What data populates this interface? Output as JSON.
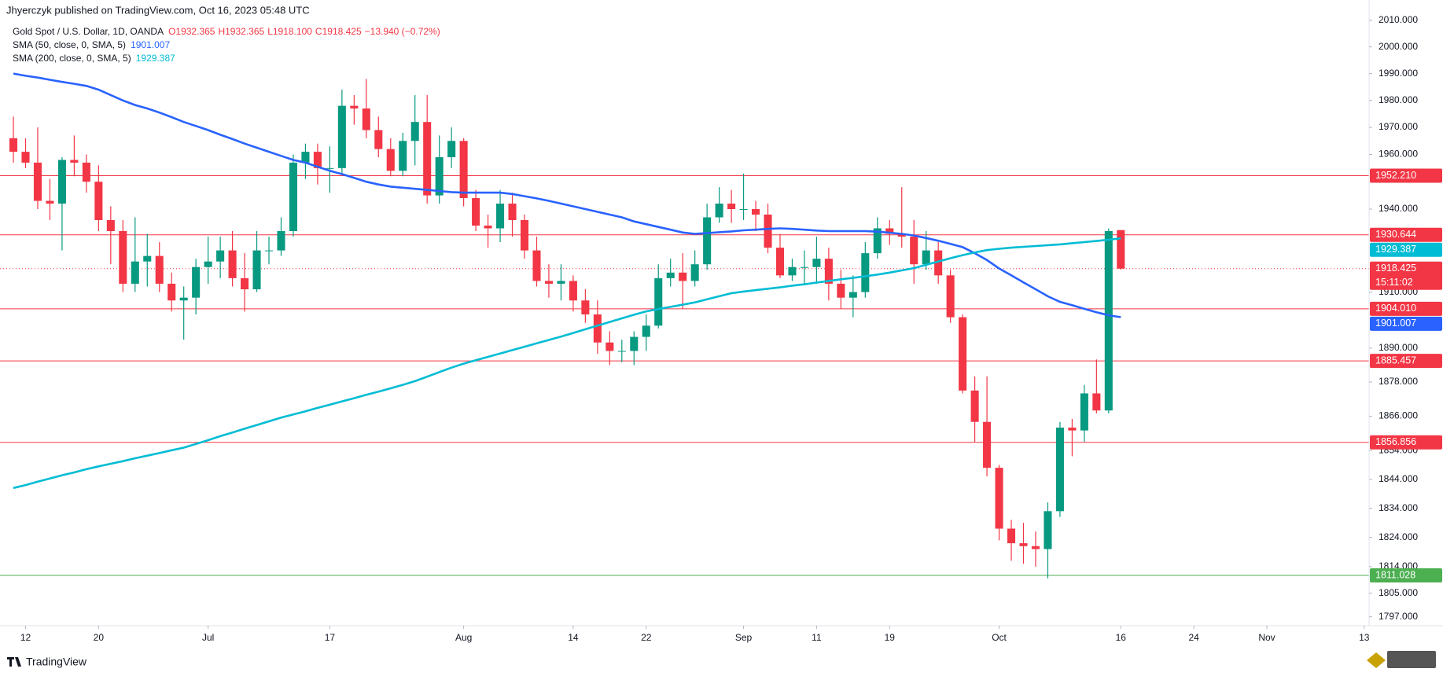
{
  "chart_data": {
    "type": "candlestick",
    "published": "Jhyerczyk published on TradingView.com, Oct 16, 2023 05:48 UTC",
    "title": "Gold Spot / U.S. Dollar, 1D, OANDA",
    "ohlc_text": [
      "O1932.365",
      "H1932.365",
      "L1918.100",
      "C1918.425",
      "−13.940 (−0.72%)"
    ],
    "footer": "TradingView",
    "countdown": "15:11:02",
    "log_scale": true,
    "grid": true,
    "up_color": "#089981",
    "down_color": "#f23645",
    "open": [
      1966,
      1961,
      1957,
      1943,
      1942,
      1958,
      1957,
      1950,
      1936,
      1932,
      1913,
      1921,
      1923,
      1913,
      1907,
      1908,
      1919,
      1921,
      1925,
      1915,
      1911,
      1925,
      1925,
      1932,
      1957,
      1961,
      1955,
      1955,
      1978,
      1977,
      1969,
      1962,
      1954,
      1965,
      1972,
      1945,
      1959,
      1965,
      1944,
      1934,
      1933,
      1942,
      1936,
      1925,
      1914,
      1913,
      1914,
      1907,
      1902,
      1892,
      1889,
      1889,
      1894,
      1898,
      1915,
      1917,
      1914,
      1920,
      1937,
      1942,
      1940,
      1940,
      1938,
      1926,
      1916,
      1919,
      1919,
      1922,
      1913,
      1908,
      1910,
      1924,
      1933,
      1931,
      1930,
      1920,
      1925,
      1916,
      1901,
      1875,
      1864,
      1848,
      1827,
      1822,
      1821,
      1820,
      1833,
      1862,
      1861,
      1874,
      1868,
      1932.365
    ],
    "high": [
      1974,
      1966,
      1970,
      1951,
      1959,
      1967,
      1960,
      1956,
      1941,
      1936,
      1937,
      1931,
      1928,
      1917,
      1912,
      1922,
      1930,
      1930,
      1932,
      1924,
      1932,
      1930,
      1937,
      1960,
      1964,
      1964,
      1963,
      1984,
      1982,
      1988,
      1974,
      1966,
      1968,
      1982,
      1982,
      1967,
      1970,
      1966,
      1947,
      1938,
      1947,
      1946,
      1938,
      1930,
      1920,
      1920,
      1916,
      1911,
      1907,
      1896,
      1893,
      1896,
      1902,
      1920,
      1922,
      1924,
      1925,
      1942,
      1948,
      1947,
      1953,
      1943,
      1942,
      1931,
      1922,
      1925,
      1930,
      1926,
      1918,
      1916,
      1928,
      1937,
      1936,
      1948,
      1936,
      1932,
      1928,
      1918,
      1902,
      1880,
      1880,
      1849,
      1830,
      1829,
      1826,
      1836,
      1864,
      1865,
      1877,
      1886,
      1933,
      1932.365
    ],
    "low": [
      1957,
      1955,
      1940,
      1936,
      1925,
      1952,
      1946,
      1932,
      1920,
      1910,
      1910,
      1912,
      1910,
      1903,
      1893,
      1902,
      1913,
      1915,
      1912,
      1903,
      1910,
      1920,
      1923,
      1930,
      1951,
      1949,
      1946,
      1953,
      1971,
      1966,
      1959,
      1952,
      1952,
      1956,
      1942,
      1942,
      1955,
      1941,
      1932,
      1926,
      1928,
      1930,
      1922,
      1912,
      1908,
      1907,
      1903,
      1899,
      1888,
      1884,
      1885,
      1884,
      1889,
      1897,
      1912,
      1904,
      1912,
      1918,
      1935,
      1935,
      1936,
      1932,
      1924,
      1915,
      1914,
      1913,
      1913,
      1907,
      1904,
      1901,
      1908,
      1922,
      1927,
      1926,
      1913,
      1918,
      1913,
      1899,
      1874,
      1857,
      1845,
      1823,
      1816,
      1815,
      1814,
      1810,
      1831,
      1852,
      1857,
      1867,
      1867,
      1918.1
    ],
    "close": [
      1961,
      1957,
      1943,
      1942,
      1958,
      1957,
      1950,
      1936,
      1932,
      1913,
      1921,
      1923,
      1913,
      1907,
      1908,
      1919,
      1921,
      1925,
      1915,
      1911,
      1925,
      1925,
      1932,
      1957,
      1961,
      1955,
      1955,
      1978,
      1977,
      1969,
      1962,
      1954,
      1965,
      1972,
      1945,
      1959,
      1965,
      1944,
      1934,
      1933,
      1942,
      1936,
      1925,
      1914,
      1913,
      1914,
      1907,
      1902,
      1892,
      1889,
      1889,
      1894,
      1898,
      1915,
      1917,
      1914,
      1920,
      1937,
      1942,
      1940,
      1940,
      1938,
      1926,
      1916,
      1919,
      1919,
      1922,
      1913,
      1908,
      1910,
      1924,
      1933,
      1931,
      1930,
      1920,
      1925,
      1916,
      1901,
      1875,
      1864,
      1848,
      1827,
      1822,
      1821,
      1820,
      1833,
      1862,
      1861,
      1874,
      1868,
      1932,
      1918.425
    ],
    "lines": [
      {
        "name": "SMA (50, close, 0, SMA, 5)",
        "color": "#2962ff",
        "values": [
          1990,
          1989.2,
          1988.5,
          1987.7,
          1986.9,
          1986.2,
          1985.4,
          1984,
          1982,
          1980,
          1978.3,
          1977,
          1975.5,
          1973.8,
          1972,
          1970.5,
          1969,
          1967.3,
          1965.7,
          1964,
          1962.5,
          1961,
          1959.5,
          1958,
          1957,
          1955.5,
          1954,
          1952.8,
          1951.4,
          1950,
          1949,
          1948.2,
          1947.8,
          1947.4,
          1947,
          1946.6,
          1946.2,
          1946,
          1946,
          1946,
          1946,
          1945.5,
          1944.7,
          1943.9,
          1943,
          1942,
          1941,
          1940,
          1939,
          1938,
          1937,
          1935.5,
          1934.5,
          1933.5,
          1932.5,
          1931.5,
          1931,
          1931.3,
          1931.6,
          1931.9,
          1932.3,
          1932.5,
          1932.8,
          1933,
          1932.8,
          1932.5,
          1932.2,
          1932,
          1932,
          1932,
          1932,
          1931.8,
          1931.4,
          1931,
          1930.4,
          1929.5,
          1928.5,
          1927.4,
          1926.2,
          1924,
          1921.5,
          1918.5,
          1916,
          1913.5,
          1911,
          1908.5,
          1906.5,
          1905.3,
          1904,
          1902.8,
          1901.7,
          1901.007
        ]
      },
      {
        "name": "SMA (200, close, 0, SMA, 5)",
        "color": "#00bcd4",
        "values": [
          1841,
          1842,
          1843.2,
          1844.3,
          1845.4,
          1846.4,
          1847.5,
          1848.5,
          1849.4,
          1850.3,
          1851.3,
          1852.2,
          1853.1,
          1854.1,
          1855,
          1856.3,
          1857.6,
          1859,
          1860.3,
          1861.6,
          1862.9,
          1864.2,
          1865.5,
          1866.6,
          1867.7,
          1868.9,
          1870,
          1871.2,
          1872.3,
          1873.5,
          1874.6,
          1875.8,
          1877,
          1878.3,
          1879.9,
          1881.5,
          1883.1,
          1884.5,
          1885.7,
          1886.9,
          1888.1,
          1889.3,
          1890.5,
          1891.7,
          1892.9,
          1894.1,
          1895.4,
          1896.7,
          1898,
          1899.3,
          1900.6,
          1901.9,
          1903.1,
          1903.9,
          1904.7,
          1905.5,
          1906.3,
          1907.4,
          1908.5,
          1909.6,
          1910.2,
          1910.7,
          1911.2,
          1911.7,
          1912.3,
          1912.8,
          1913.4,
          1914,
          1914.6,
          1915.1,
          1915.7,
          1916.3,
          1917,
          1917.8,
          1918.6,
          1919.8,
          1921,
          1922.2,
          1923.3,
          1924.3,
          1925.1,
          1925.6,
          1926,
          1926.3,
          1926.6,
          1926.9,
          1927.2,
          1927.6,
          1928,
          1928.4,
          1928.9,
          1929.387
        ]
      }
    ],
    "levels": [
      {
        "value": 1952.21,
        "label": "1952.210",
        "color": "#f23645"
      },
      {
        "value": 1930.644,
        "color": "#f23645"
      },
      {
        "value": 1904.01,
        "label": "1904.010",
        "color": "#f23645"
      },
      {
        "value": 1885.457,
        "color": "#f23645"
      },
      {
        "value": 1856.856,
        "color": "#f23645"
      },
      {
        "value": 1811.028,
        "color": "#4caf50"
      }
    ],
    "xlim": [
      -1.1,
      111.4
    ],
    "ylim": [
      1794,
      2017.7
    ],
    "xticks": [
      {
        "value": 1,
        "label": "12"
      },
      {
        "value": 7,
        "label": "20"
      },
      {
        "value": 16,
        "label": "Jul"
      },
      {
        "value": 26,
        "label": "17"
      },
      {
        "value": 37,
        "label": "Aug"
      },
      {
        "value": 46,
        "label": "14"
      },
      {
        "value": 52,
        "label": "22"
      },
      {
        "value": 60,
        "label": "Sep"
      },
      {
        "value": 66,
        "label": "11"
      },
      {
        "value": 72,
        "label": "19"
      },
      {
        "value": 81,
        "label": "Oct"
      },
      {
        "value": 91,
        "label": "16"
      },
      {
        "value": 97,
        "label": "24"
      },
      {
        "value": 103,
        "label": "Nov"
      },
      {
        "value": 111,
        "label": "13"
      }
    ],
    "yticks": [
      {
        "value": 2010,
        "label": "2010.000"
      },
      {
        "value": 2000,
        "label": "2000.000"
      },
      {
        "value": 1990,
        "label": "1990.000"
      },
      {
        "value": 1980,
        "label": "1980.000"
      },
      {
        "value": 1970,
        "label": "1970.000"
      },
      {
        "value": 1960,
        "label": "1960.000"
      },
      {
        "value": 1940,
        "label": "1940.000"
      },
      {
        "value": 1910,
        "label": "1910.000"
      },
      {
        "value": 1890,
        "label": "1890.000"
      },
      {
        "value": 1878,
        "label": "1878.000"
      },
      {
        "value": 1866,
        "label": "1866.000"
      },
      {
        "value": 1854,
        "label": "1854.000"
      },
      {
        "value": 1844,
        "label": "1844.000"
      },
      {
        "value": 1834,
        "label": "1834.000"
      },
      {
        "value": 1824,
        "label": "1824.000"
      },
      {
        "value": 1814,
        "label": "1814.000"
      },
      {
        "value": 1805,
        "label": "1805.000"
      },
      {
        "value": 1797,
        "label": "1797.000"
      }
    ]
  }
}
